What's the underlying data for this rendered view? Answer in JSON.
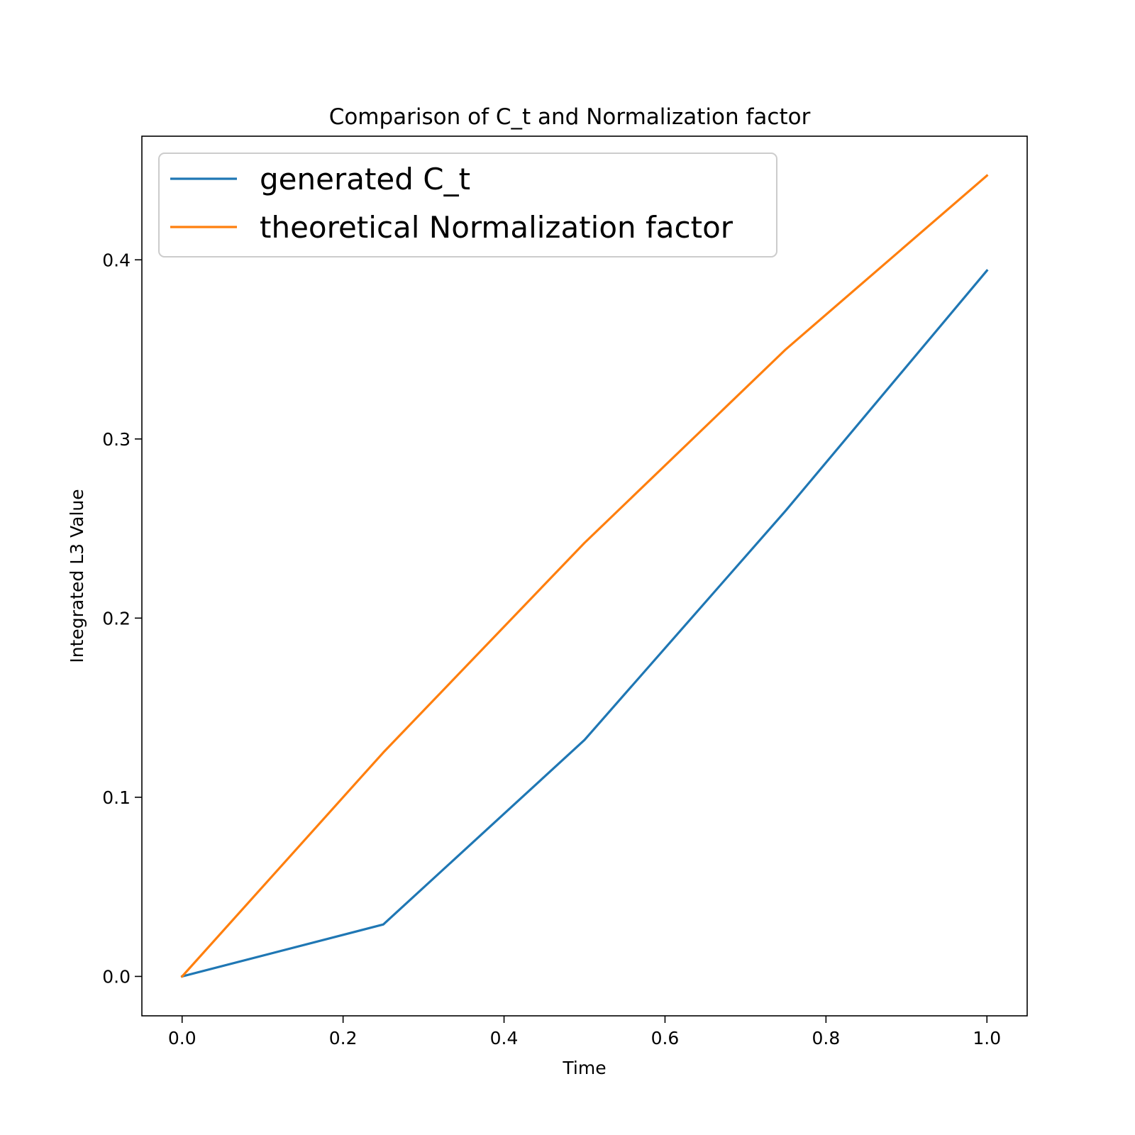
{
  "chart_data": {
    "type": "line",
    "title": "Comparison of C_t and Normalization factor",
    "xlabel": "Time",
    "ylabel": "Integrated L3 Value",
    "xlim": [
      -0.05,
      1.05
    ],
    "ylim": [
      -0.022,
      0.469
    ],
    "xticks": [
      0.0,
      0.2,
      0.4,
      0.6,
      0.8,
      1.0
    ],
    "xtick_labels": [
      "0.0",
      "0.2",
      "0.4",
      "0.6",
      "0.8",
      "1.0"
    ],
    "yticks": [
      0.0,
      0.1,
      0.2,
      0.3,
      0.4
    ],
    "ytick_labels": [
      "0.0",
      "0.1",
      "0.2",
      "0.3",
      "0.4"
    ],
    "grid": false,
    "legend_position": "upper-left",
    "x": [
      0.0,
      0.25,
      0.5,
      0.75,
      1.0
    ],
    "series": [
      {
        "name": "generated C_t",
        "color": "#1f77b4",
        "values": [
          0.0,
          0.029,
          0.132,
          0.26,
          0.394
        ]
      },
      {
        "name": "theoretical Normalization factor",
        "color": "#ff7f0e",
        "values": [
          0.0,
          0.125,
          0.242,
          0.35,
          0.447
        ]
      }
    ]
  }
}
